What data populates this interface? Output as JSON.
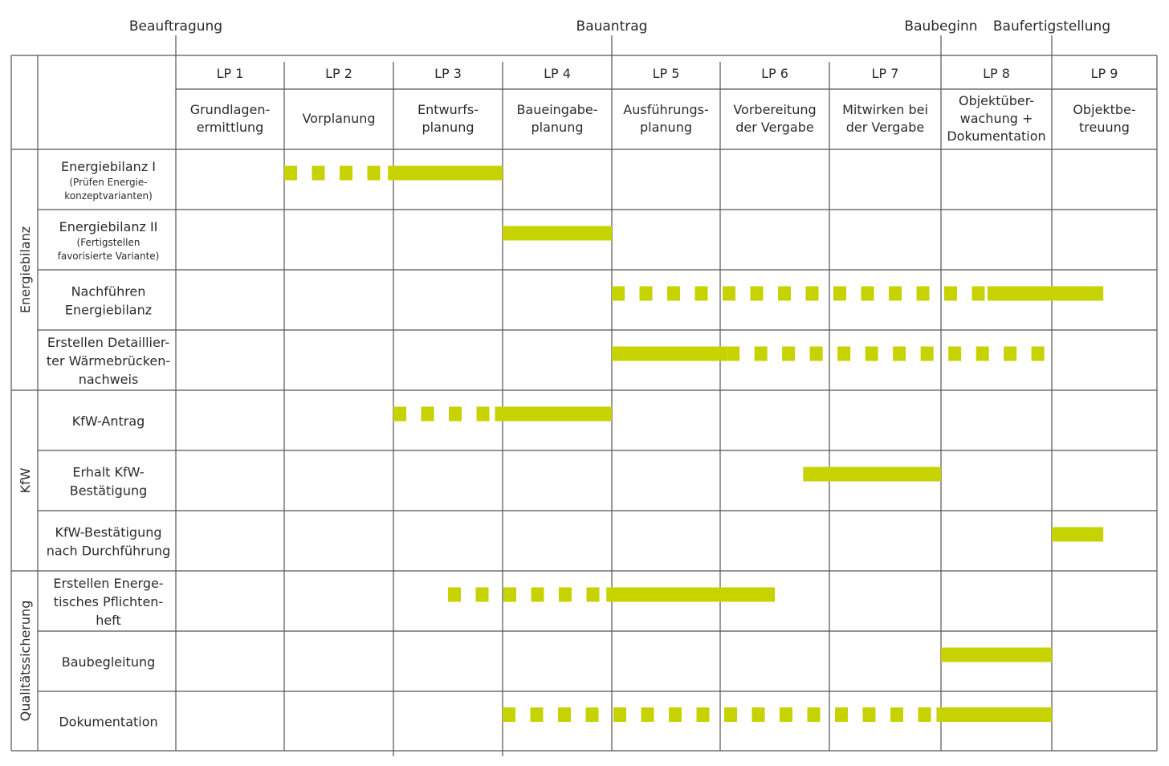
{
  "milestones": [
    {
      "label": "Beauftragung",
      "after_phase": 0
    },
    {
      "label": "Bauantrag",
      "after_phase": 4
    },
    {
      "label": "Baubeginn",
      "after_phase": 7
    },
    {
      "label": "Baufertigstellung",
      "after_phase": 8
    }
  ],
  "phases": [
    {
      "code": "LP 1",
      "name": [
        "Grundlagen-",
        "ermittlung"
      ]
    },
    {
      "code": "LP 2",
      "name": [
        "Vorplanung"
      ]
    },
    {
      "code": "LP 3",
      "name": [
        "Entwurfs-",
        "planung"
      ]
    },
    {
      "code": "LP 4",
      "name": [
        "Baueingabe-",
        "planung"
      ]
    },
    {
      "code": "LP 5",
      "name": [
        "Ausführungs-",
        "planung"
      ]
    },
    {
      "code": "LP 6",
      "name": [
        "Vorbereitung",
        "der Vergabe"
      ]
    },
    {
      "code": "LP 7",
      "name": [
        "Mitwirken bei",
        "der Vergabe"
      ]
    },
    {
      "code": "LP 8",
      "name": [
        "Objektüber-",
        "wachung +",
        "Dokumentation"
      ]
    },
    {
      "code": "LP 9",
      "name": [
        "Objektbe-",
        "treuung"
      ]
    }
  ],
  "groups": [
    {
      "label": "Energiebilanz",
      "rows": [
        0,
        3
      ]
    },
    {
      "label": "KfW",
      "rows": [
        4,
        6
      ]
    },
    {
      "label": "Qualitätssicherung",
      "rows": [
        7,
        9
      ]
    }
  ],
  "tasks": [
    {
      "lines": [
        "Energiebilanz I"
      ],
      "sub": [
        "(Prüfen Energie-",
        "konzeptvarianten)"
      ],
      "bars": [
        {
          "style": "dashed",
          "start": 1.0,
          "end": 1.95
        },
        {
          "style": "solid",
          "start": 1.95,
          "end": 3.0
        }
      ]
    },
    {
      "lines": [
        "Energiebilanz II"
      ],
      "sub": [
        "(Fertigstellen",
        "favorisierte Variante)"
      ],
      "bars": [
        {
          "style": "solid",
          "start": 3.0,
          "end": 4.0
        }
      ]
    },
    {
      "lines": [
        "Nachführen",
        "Energiebilanz"
      ],
      "sub": [],
      "bars": [
        {
          "style": "dashed",
          "start": 4.0,
          "end": 7.42
        },
        {
          "style": "solid",
          "start": 7.42,
          "end": 8.49
        }
      ]
    },
    {
      "lines": [
        "Erstellen Detaillier-",
        "ter Wärmebrücken-",
        "nachweis"
      ],
      "sub": [],
      "bars": [
        {
          "style": "solid",
          "start": 4.0,
          "end": 5.06
        },
        {
          "style": "dashed",
          "start": 5.06,
          "end": 8.0
        }
      ]
    },
    {
      "lines": [
        "KfW-Antrag"
      ],
      "sub": [],
      "bars": [
        {
          "style": "dashed",
          "start": 2.0,
          "end": 2.93
        },
        {
          "style": "solid",
          "start": 2.93,
          "end": 4.0
        }
      ]
    },
    {
      "lines": [
        "Erhalt KfW-",
        "Bestätigung"
      ],
      "sub": [],
      "bars": [
        {
          "style": "solid",
          "start": 5.76,
          "end": 7.0
        }
      ]
    },
    {
      "lines": [
        "KfW-Bestätigung",
        "nach Durchführung"
      ],
      "sub": [],
      "bars": [
        {
          "style": "solid",
          "start": 8.0,
          "end": 8.49
        }
      ]
    },
    {
      "lines": [
        "Erstellen Energe-",
        "tisches Pflichten-",
        "heft"
      ],
      "sub": [],
      "bars": [
        {
          "style": "dashed",
          "start": 2.5,
          "end": 3.95
        },
        {
          "style": "solid",
          "start": 3.95,
          "end": 5.5
        }
      ]
    },
    {
      "lines": [
        "Baubegleitung"
      ],
      "sub": [],
      "bars": [
        {
          "style": "solid",
          "start": 7.0,
          "end": 8.0
        }
      ]
    },
    {
      "lines": [
        "Dokumentation"
      ],
      "sub": [],
      "bars": [
        {
          "style": "dashed",
          "start": 3.0,
          "end": 6.96
        },
        {
          "style": "solid",
          "start": 6.96,
          "end": 8.0
        }
      ]
    }
  ],
  "colors": {
    "bar": "#c6d300",
    "grid": "#555555",
    "text": "#2b2b2b"
  }
}
